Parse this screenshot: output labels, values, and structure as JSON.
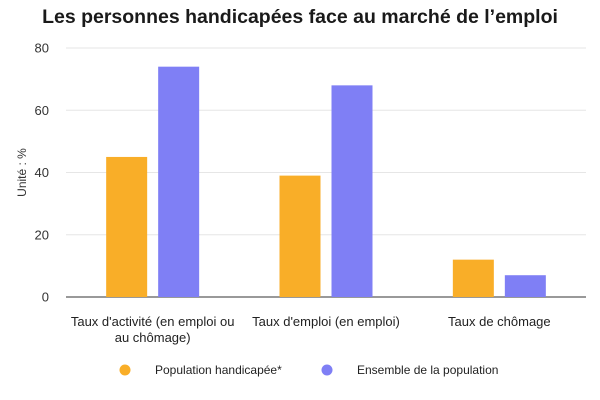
{
  "chart_data": {
    "type": "bar",
    "title": "Les personnes handicapées face au marché de l’emploi",
    "ylabel": "Unité : %",
    "xlabel": "",
    "ylim": [
      0,
      80
    ],
    "yticks": [
      0,
      20,
      40,
      60,
      80
    ],
    "grid": true,
    "categories": [
      [
        "Taux d'activité (en emploi ou",
        "au chômage)"
      ],
      [
        "Taux d'emploi (en emploi)"
      ],
      [
        "Taux de chômage"
      ]
    ],
    "series": [
      {
        "name": "Population handicapée*",
        "color": "#F9AE28",
        "values": [
          45,
          39,
          12
        ]
      },
      {
        "name": "Ensemble de la population",
        "color": "#7F7FF5",
        "values": [
          74,
          68,
          7
        ]
      }
    ],
    "legend_position": "bottom"
  }
}
